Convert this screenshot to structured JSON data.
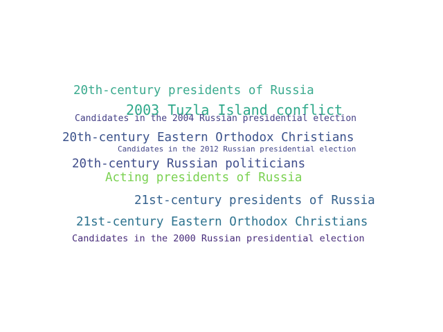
{
  "words": [
    {
      "text": "20th-century presidents of Russia",
      "color": "#3aaa8e"
    },
    {
      "text": "2003 Tuzla Island conflict",
      "color": "#2ea88a"
    },
    {
      "text": "Candidates in the 2004 Russian presidential election",
      "color": "#433e85"
    },
    {
      "text": "20th-century Eastern Orthodox Christians",
      "color": "#3b528b"
    },
    {
      "text": "Candidates in the 2012 Russian presidential election",
      "color": "#414487"
    },
    {
      "text": "20th-century Russian politicians",
      "color": "#3e4c8a"
    },
    {
      "text": "Acting presidents of Russia",
      "color": "#7ad151"
    },
    {
      "text": "21st-century presidents of Russia",
      "color": "#34618d"
    },
    {
      "text": "21st-century Eastern Orthodox Christians",
      "color": "#2c728e"
    },
    {
      "text": "Candidates in the 2000 Russian presidential election",
      "color": "#472c7a"
    }
  ]
}
